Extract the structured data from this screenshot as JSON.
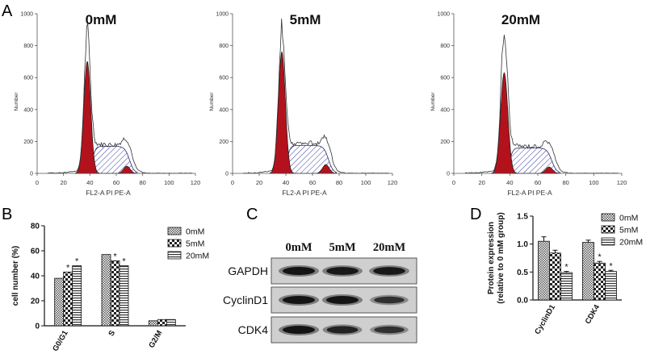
{
  "panel_letters": {
    "a": "A",
    "b": "B",
    "c": "C",
    "d": "D"
  },
  "colors": {
    "dark_red": "#b3121c",
    "hatch_blue": "#3a3d9a",
    "axis": "#555555",
    "band": "#1b1b1b",
    "blot_bg": "#c9c9c9"
  },
  "chart_data": [
    {
      "type": "line",
      "title": "0mM",
      "xlabel": "FL2-A PI PE-A",
      "ylabel": "Number",
      "xlim": [
        0,
        120
      ],
      "ylim": [
        0,
        1000
      ],
      "xticks": [
        "0",
        "20",
        "40",
        "60",
        "80",
        "100",
        "120"
      ],
      "yticks": [
        "0",
        "200",
        "400",
        "600",
        "800",
        "1000"
      ],
      "g1_peak": {
        "x": 38,
        "y": 700
      },
      "s_phase_level": 170,
      "g2_peak": {
        "x": 68,
        "y": 45
      },
      "outline_peak": 860
    },
    {
      "type": "line",
      "title": "5mM",
      "xlabel": "FL2-A PI PE-A",
      "ylabel": "Number",
      "xlim": [
        0,
        120
      ],
      "ylim": [
        0,
        1000
      ],
      "xticks": [
        "0",
        "20",
        "40",
        "60",
        "80",
        "100",
        "120"
      ],
      "yticks": [
        "0",
        "200",
        "400",
        "600",
        "800",
        "1000"
      ],
      "g1_peak": {
        "x": 37,
        "y": 760
      },
      "s_phase_level": 175,
      "g2_peak": {
        "x": 70,
        "y": 55
      },
      "outline_peak": 910
    },
    {
      "type": "line",
      "title": "20mM",
      "xlabel": "FL2-A PI PE-A",
      "ylabel": "Number",
      "xlim": [
        0,
        120
      ],
      "ylim": [
        0,
        1000
      ],
      "xticks": [
        "0",
        "20",
        "40",
        "60",
        "80",
        "100",
        "120"
      ],
      "yticks": [
        "0",
        "200",
        "400",
        "600",
        "800",
        "1000"
      ],
      "g1_peak": {
        "x": 36,
        "y": 630
      },
      "s_phase_level": 160,
      "g2_peak": {
        "x": 68,
        "y": 40
      },
      "outline_peak": 860
    },
    {
      "type": "bar",
      "categories": [
        "G0/G1",
        "S",
        "G2/M"
      ],
      "series": [
        {
          "name": "0mM",
          "values": [
            38,
            57,
            4
          ]
        },
        {
          "name": "5mM",
          "values": [
            43,
            52,
            5
          ]
        },
        {
          "name": "20mM",
          "values": [
            48,
            48,
            5
          ]
        }
      ],
      "stars": [
        [
          false,
          true,
          true
        ],
        [
          false,
          true,
          true
        ],
        [
          false,
          false,
          false
        ]
      ],
      "ylabel": "cell number (%)",
      "ylim": [
        0,
        80
      ],
      "yticks": [
        "0",
        "20",
        "40",
        "60",
        "80"
      ],
      "legend": "top-right"
    },
    {
      "type": "bar",
      "categories": [
        "CyclinD1",
        "CDK4"
      ],
      "series": [
        {
          "name": "0mM",
          "values": [
            1.05,
            1.03
          ],
          "errors": [
            0.08,
            0.04
          ]
        },
        {
          "name": "5mM",
          "values": [
            0.84,
            0.66
          ],
          "errors": [
            0.05,
            0.03
          ]
        },
        {
          "name": "20mM",
          "values": [
            0.49,
            0.51
          ],
          "errors": [
            0.02,
            0.02
          ]
        }
      ],
      "stars": [
        [
          false,
          false
        ],
        [
          false,
          true
        ],
        [
          true,
          true
        ]
      ],
      "ylabel": "Protein expression\n(relative to 0 mM group)",
      "ylim": [
        0,
        1.5
      ],
      "yticks": [
        "0.0",
        "0.5",
        "1.0",
        "1.5"
      ],
      "legend": "top-right"
    }
  ],
  "blot": {
    "lanes": [
      "0mM",
      "5mM",
      "20mM"
    ],
    "rows": [
      {
        "label": "GAPDH",
        "intensity": [
          1.0,
          0.95,
          0.95
        ]
      },
      {
        "label": "CyclinD1",
        "intensity": [
          1.0,
          1.0,
          0.6
        ]
      },
      {
        "label": "CDK4",
        "intensity": [
          1.0,
          0.8,
          0.6
        ]
      }
    ]
  },
  "star_symbol": "*"
}
